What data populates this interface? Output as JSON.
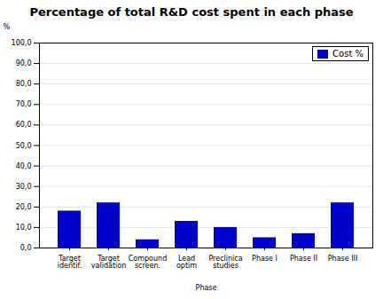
{
  "chart_data": {
    "type": "bar",
    "title": "Percentage of total R&D cost spent in each phase",
    "categories": [
      "Target\nidentif.",
      "Target\nvalidation",
      "Compound\nscreen.",
      "Lead\noptim",
      "Preclinica\nstudies",
      "Phase I",
      "Phase II",
      "Phase III"
    ],
    "series": [
      {
        "name": "Cost %",
        "color": "#0000CC",
        "values": [
          18,
          22,
          4,
          13,
          10,
          5,
          7,
          22
        ]
      }
    ],
    "xlabel": "Phase",
    "ylabel": "%",
    "ylim": [
      0,
      100
    ],
    "yticks": [
      {
        "value": 0,
        "label": "0,0"
      },
      {
        "value": 10,
        "label": "10,0"
      },
      {
        "value": 20,
        "label": "20,0"
      },
      {
        "value": 30,
        "label": "30,0"
      },
      {
        "value": 40,
        "label": "40,0"
      },
      {
        "value": 50,
        "label": "50,0"
      },
      {
        "value": 60,
        "label": "60,0"
      },
      {
        "value": 70,
        "label": "70,0"
      },
      {
        "value": 80,
        "label": "80,0"
      },
      {
        "value": 90,
        "label": "90,0"
      },
      {
        "value": 100,
        "label": "100,0"
      }
    ],
    "grid": true,
    "legend": "upper right"
  }
}
